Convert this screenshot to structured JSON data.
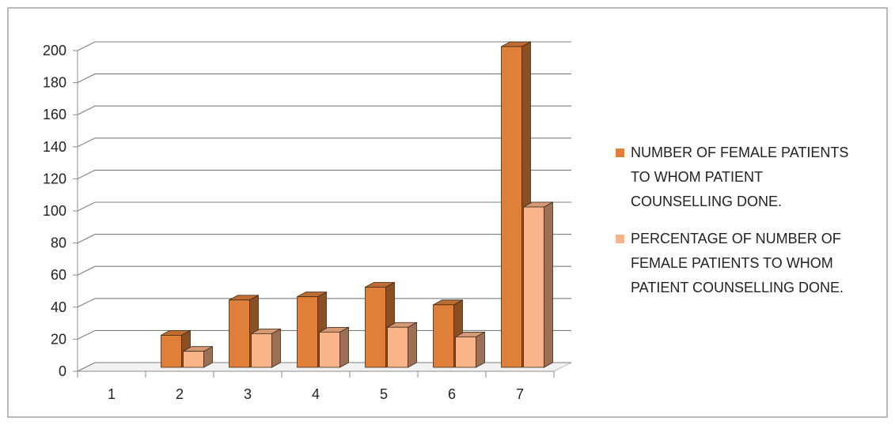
{
  "chart_data": {
    "type": "bar",
    "title": "",
    "xlabel": "",
    "ylabel": "",
    "categories": [
      "1",
      "2",
      "3",
      "4",
      "5",
      "6",
      "7"
    ],
    "ylim": [
      0,
      200
    ],
    "yticks": [
      "0",
      "20",
      "40",
      "60",
      "80",
      "100",
      "120",
      "140",
      "160",
      "180",
      "200"
    ],
    "grid": true,
    "legend_position": "right",
    "series": [
      {
        "name": "NUMBER OF FEMALE PATIENTS TO WHOM PATIENT COUNSELLING DONE.",
        "legend_lines": [
          "NUMBER OF FEMALE PATIENTS",
          "TO WHOM PATIENT",
          "COUNSELLING DONE."
        ],
        "color": "#E07F3A",
        "values": [
          0,
          20,
          42,
          44,
          50,
          39,
          200
        ]
      },
      {
        "name": "PERCENTAGE OF NUMBER OF FEMALE PATIENTS TO WHOM PATIENT COUNSELLING DONE.",
        "legend_lines": [
          "PERCENTAGE OF NUMBER OF",
          "FEMALE PATIENTS TO WHOM",
          "PATIENT COUNSELLING DONE."
        ],
        "color": "#FAB48A",
        "values": [
          0,
          10,
          21,
          22,
          25,
          19,
          100
        ]
      }
    ]
  }
}
